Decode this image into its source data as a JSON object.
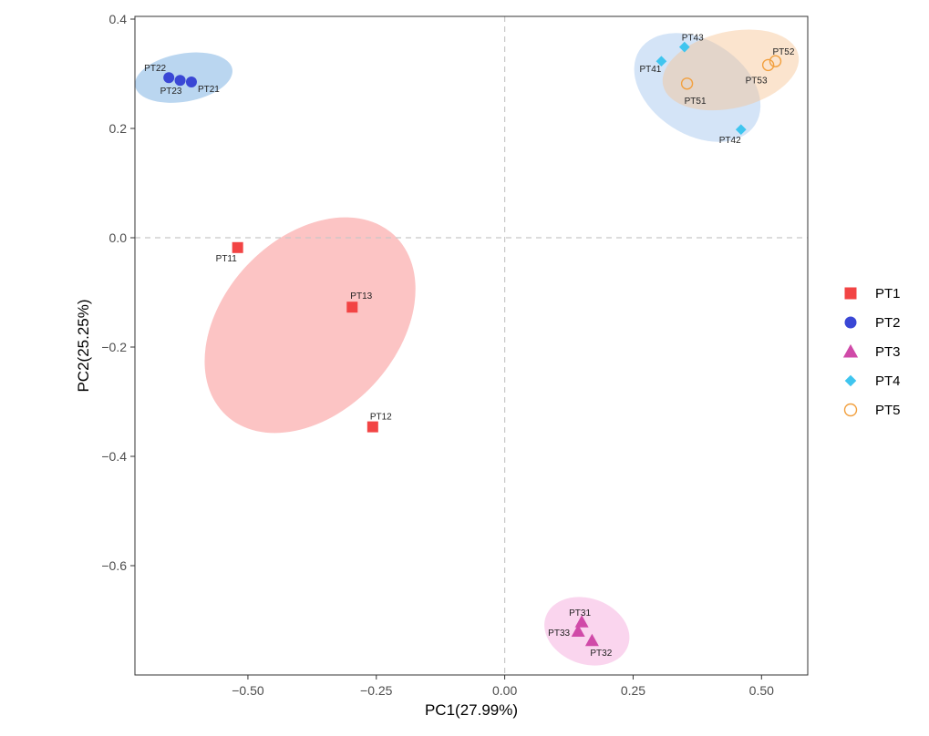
{
  "chart_data": {
    "type": "scatter",
    "title": "",
    "xlabel": "PC1(27.99%)",
    "ylabel": "PC2(25.25%)",
    "xlim": [
      -0.72,
      0.59
    ],
    "ylim": [
      -0.8,
      0.405
    ],
    "x_ticks": [
      -0.5,
      -0.25,
      0.0,
      0.25,
      0.5
    ],
    "x_tick_labels": [
      "−0.50",
      "−0.25",
      "0.00",
      "0.25",
      "0.50"
    ],
    "y_ticks": [
      0.4,
      0.2,
      0.0,
      -0.2,
      -0.4,
      -0.6
    ],
    "y_tick_labels": [
      "0.4",
      "0.2",
      "0.0",
      "−0.2",
      "−0.4",
      "−0.6"
    ],
    "grid": false,
    "reference_lines": {
      "x": 0,
      "y": 0,
      "style": "dashed"
    },
    "legend_position": "right",
    "series": [
      {
        "name": "PT1",
        "marker": "square",
        "color": "#f24444",
        "ellipse_color": "#f97d7d",
        "points": [
          {
            "label": "PT11",
            "x": -0.52,
            "y": -0.018
          },
          {
            "label": "PT13",
            "x": -0.297,
            "y": -0.127
          },
          {
            "label": "PT12",
            "x": -0.257,
            "y": -0.346
          }
        ],
        "ellipse": {
          "cx": -0.379,
          "cy": -0.16,
          "rx": 0.24,
          "ry": 0.159,
          "angle_deg": -47
        }
      },
      {
        "name": "PT2",
        "marker": "circle",
        "color": "#3a47d5",
        "ellipse_color": "#66a3dd",
        "points": [
          {
            "label": "PT22",
            "x": -0.654,
            "y": 0.293
          },
          {
            "label": "PT23",
            "x": -0.632,
            "y": 0.288
          },
          {
            "label": "PT21",
            "x": -0.61,
            "y": 0.285
          }
        ],
        "ellipse": {
          "cx": -0.625,
          "cy": 0.293,
          "rx": 0.096,
          "ry": 0.044,
          "angle_deg": -10
        }
      },
      {
        "name": "PT3",
        "marker": "triangle",
        "color": "#d04aa8",
        "ellipse_color": "#f3a2da",
        "points": [
          {
            "label": "PT31",
            "x": 0.15,
            "y": -0.703
          },
          {
            "label": "PT33",
            "x": 0.143,
            "y": -0.72
          },
          {
            "label": "PT32",
            "x": 0.17,
            "y": -0.737
          }
        ],
        "ellipse": {
          "cx": 0.16,
          "cy": -0.72,
          "rx": 0.085,
          "ry": 0.06,
          "angle_deg": 20
        }
      },
      {
        "name": "PT4",
        "marker": "diamond",
        "color": "#3fc5ef",
        "ellipse_color": "#9fc4ee",
        "points": [
          {
            "label": "PT43",
            "x": 0.35,
            "y": 0.349
          },
          {
            "label": "PT41",
            "x": 0.305,
            "y": 0.323
          },
          {
            "label": "PT42",
            "x": 0.46,
            "y": 0.198
          }
        ],
        "ellipse": {
          "cx": 0.375,
          "cy": 0.275,
          "rx": 0.134,
          "ry": 0.086,
          "angle_deg": 33
        }
      },
      {
        "name": "PT5",
        "marker": "open-circle",
        "color": "#f2a03f",
        "ellipse_color": "#f6c492",
        "points": [
          {
            "label": "PT52",
            "x": 0.527,
            "y": 0.323
          },
          {
            "label": "PT53",
            "x": 0.513,
            "y": 0.316
          },
          {
            "label": "PT51",
            "x": 0.355,
            "y": 0.282
          }
        ],
        "ellipse": {
          "cx": 0.44,
          "cy": 0.307,
          "rx": 0.135,
          "ry": 0.07,
          "angle_deg": -13
        }
      }
    ]
  }
}
